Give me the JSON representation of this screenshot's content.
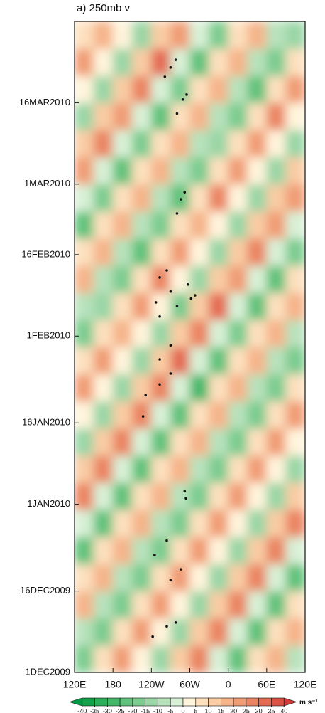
{
  "chart_data": {
    "type": "heatmap",
    "title": "a) 250mb v",
    "x": [
      135,
      165,
      195,
      225,
      255,
      285,
      315,
      345,
      375,
      405,
      435,
      465
    ],
    "y": [
      2.5,
      7.5,
      12.5,
      17.5,
      22.5,
      27.5,
      32.5,
      37.5,
      42.5,
      47.5,
      52.5,
      57.5,
      62.5,
      67.5,
      72.5,
      77.5,
      82.5,
      87.5,
      92.5,
      97.5,
      102.5,
      107.5,
      112.5,
      117.5
    ],
    "z": [
      [
        -20,
        5,
        20,
        0,
        -15,
        10,
        25,
        -5,
        -25,
        5,
        15,
        -10
      ],
      [
        -10,
        -20,
        5,
        20,
        0,
        -15,
        10,
        25,
        -5,
        -25,
        5,
        15
      ],
      [
        15,
        -10,
        -20,
        5,
        20,
        0,
        -15,
        10,
        25,
        -5,
        -25,
        5
      ],
      [
        5,
        15,
        -10,
        -20,
        5,
        20,
        0,
        -15,
        10,
        25,
        -5,
        -25
      ],
      [
        -25,
        5,
        15,
        -10,
        -20,
        5,
        20,
        0,
        -15,
        10,
        25,
        -5
      ],
      [
        -5,
        -25,
        5,
        15,
        -10,
        -20,
        5,
        20,
        0,
        -15,
        10,
        25
      ],
      [
        25,
        -5,
        -25,
        5,
        15,
        -10,
        -20,
        5,
        20,
        0,
        -15,
        10
      ],
      [
        10,
        25,
        -5,
        -25,
        5,
        15,
        -10,
        -20,
        5,
        20,
        0,
        -15
      ],
      [
        -15,
        10,
        25,
        -5,
        -25,
        5,
        15,
        -10,
        -20,
        5,
        20,
        0
      ],
      [
        0,
        -15,
        10,
        25,
        -5,
        -25,
        5,
        15,
        -10,
        -20,
        5,
        20
      ],
      [
        20,
        0,
        -15,
        10,
        25,
        -5,
        -30,
        5,
        15,
        -10,
        -20,
        5
      ],
      [
        5,
        20,
        0,
        -15,
        10,
        30,
        -5,
        -25,
        5,
        15,
        -10,
        -20
      ],
      [
        -20,
        5,
        15,
        0,
        -15,
        10,
        25,
        -5,
        -20,
        5,
        15,
        -10
      ],
      [
        -10,
        -15,
        5,
        20,
        0,
        -20,
        10,
        30,
        -5,
        -25,
        5,
        15
      ],
      [
        15,
        -10,
        -20,
        5,
        25,
        0,
        -15,
        10,
        20,
        -5,
        -25,
        5
      ],
      [
        5,
        15,
        -10,
        -25,
        5,
        20,
        0,
        -15,
        10,
        25,
        -5,
        -20
      ],
      [
        -25,
        5,
        15,
        -10,
        -20,
        5,
        15,
        0,
        -15,
        10,
        20,
        -5
      ],
      [
        -5,
        -20,
        5,
        15,
        -10,
        -25,
        5,
        25,
        0,
        -15,
        10,
        20
      ],
      [
        20,
        -5,
        -25,
        5,
        15,
        -10,
        -20,
        5,
        20,
        0,
        -15,
        10
      ],
      [
        10,
        25,
        -5,
        -20,
        5,
        15,
        -10,
        -15,
        5,
        20,
        0,
        -15
      ],
      [
        -15,
        10,
        20,
        -5,
        -25,
        5,
        15,
        -10,
        -20,
        5,
        25,
        0
      ],
      [
        0,
        -15,
        10,
        25,
        -5,
        -20,
        5,
        15,
        -10,
        -25,
        5,
        20
      ],
      [
        20,
        0,
        -15,
        10,
        30,
        -5,
        -25,
        5,
        15,
        -10,
        -20,
        5
      ],
      [
        5,
        15,
        0,
        -15,
        10,
        20,
        -5,
        -20,
        5,
        15,
        -10,
        -15
      ]
    ],
    "xlim": [
      120,
      480
    ],
    "ylim": [
      0,
      120
    ],
    "xticks": [
      {
        "value": 120,
        "label": "120E"
      },
      {
        "value": 180,
        "label": "180"
      },
      {
        "value": 240,
        "label": "120W"
      },
      {
        "value": 300,
        "label": "60W"
      },
      {
        "value": 360,
        "label": "0"
      },
      {
        "value": 420,
        "label": "60E"
      },
      {
        "value": 480,
        "label": "120E"
      }
    ],
    "yticks": [
      {
        "value": 0,
        "label": "1DEC2009"
      },
      {
        "value": 15,
        "label": "16DEC2009"
      },
      {
        "value": 31,
        "label": "1JAN2010"
      },
      {
        "value": 46,
        "label": "16JAN2010"
      },
      {
        "value": 62,
        "label": "1FEB2010"
      },
      {
        "value": 77,
        "label": "16FEB2010"
      },
      {
        "value": 90,
        "label": "1MAR2010"
      },
      {
        "value": 105,
        "label": "16MAR2010"
      }
    ],
    "points": {
      "color": "#111111",
      "x": [
        261,
        270,
        278,
        280,
        289,
        295,
        280,
        286,
        292,
        253,
        264,
        247,
        270,
        297,
        308,
        253,
        280,
        302,
        253,
        270,
        231,
        253,
        270,
        227,
        292,
        294,
        245,
        264,
        270,
        286,
        242,
        264,
        278
      ],
      "y": [
        109.8,
        111.5,
        112.9,
        103,
        105.6,
        106.5,
        84.6,
        87.2,
        88.5,
        72.8,
        74.1,
        68.2,
        70.2,
        71.5,
        69.5,
        65.6,
        67.5,
        68.9,
        57.7,
        60.3,
        51.1,
        53.1,
        55.1,
        47.2,
        33.4,
        32.1,
        21.6,
        24.3,
        17.0,
        19.0,
        6.6,
        8.5,
        9.2
      ]
    },
    "colorbar": {
      "levels": [
        -40,
        -35,
        -30,
        -25,
        -20,
        -15,
        -10,
        -5,
        0,
        5,
        10,
        15,
        20,
        25,
        30,
        35,
        40
      ],
      "colors": [
        "#009a44",
        "#11a24c",
        "#2aae5a",
        "#44b86a",
        "#60c27c",
        "#7ccc90",
        "#9ad6a6",
        "#b8e2bc",
        "#d8f0d6",
        "#fff4dc",
        "#fde0be",
        "#f9cca4",
        "#f5b48a",
        "#f09c74",
        "#ea8462",
        "#e46a52",
        "#dd5046",
        "#d43a3a"
      ],
      "label": "m s⁻¹"
    }
  }
}
